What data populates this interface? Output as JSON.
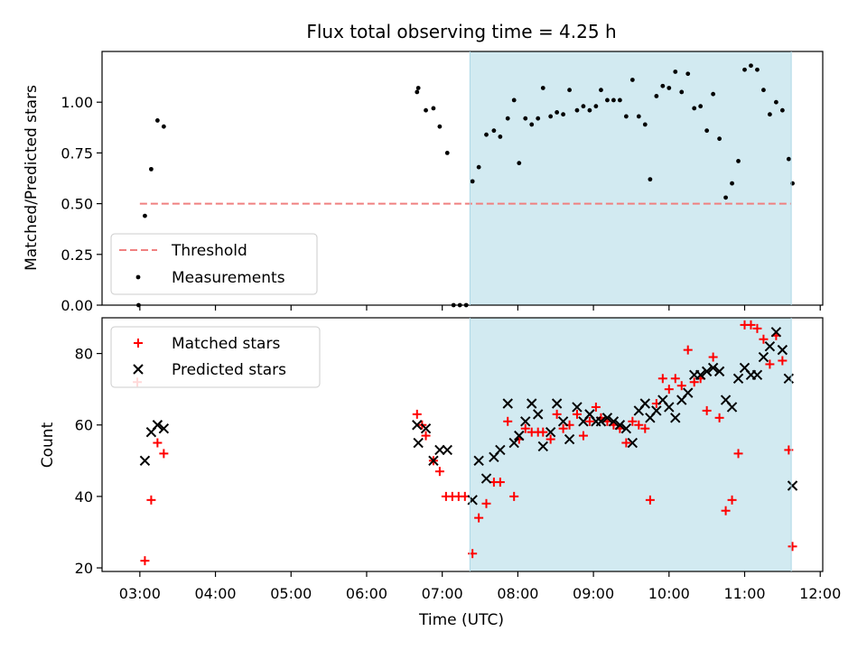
{
  "title": "Flux total observing time = 4.25 h",
  "chart_data": [
    {
      "type": "scatter",
      "ylabel": "Matched/Predicted stars",
      "xlabel": "",
      "xlim": [
        "02:30",
        "12:02"
      ],
      "ylim": [
        0,
        1.25
      ],
      "y_ticks": [
        {
          "value": 0.0,
          "label": "0.00"
        },
        {
          "value": 0.25,
          "label": "0.25"
        },
        {
          "value": 0.5,
          "label": "0.50"
        },
        {
          "value": 0.75,
          "label": "0.75"
        },
        {
          "value": 1.0,
          "label": "1.00"
        }
      ],
      "legend_position": "lower-left",
      "legend": [
        {
          "label": "Threshold",
          "kind": "dashed-line",
          "color": "#f08080"
        },
        {
          "label": "Measurements",
          "kind": "dot",
          "color": "#000000"
        }
      ],
      "observing_span": {
        "start": "07:22",
        "end": "11:37",
        "color": "#add8e6"
      },
      "threshold": {
        "value": 0.5,
        "x_range": [
          "03:00",
          "11:37"
        ],
        "color": "#f08080"
      },
      "series": [
        {
          "name": "Measurements",
          "marker": "dot",
          "color": "#000000",
          "points": [
            [
              "02:59",
              0.0
            ],
            [
              "03:04",
              0.44
            ],
            [
              "03:09",
              0.67
            ],
            [
              "03:14",
              0.91
            ],
            [
              "03:19",
              0.88
            ],
            [
              "06:40",
              1.05
            ],
            [
              "06:41",
              1.07
            ],
            [
              "06:47",
              0.96
            ],
            [
              "06:53",
              0.97
            ],
            [
              "06:58",
              0.88
            ],
            [
              "07:04",
              0.75
            ],
            [
              "07:09",
              0.0
            ],
            [
              "07:14",
              0.0
            ],
            [
              "07:19",
              0.0
            ],
            [
              "07:24",
              0.61
            ],
            [
              "07:29",
              0.68
            ],
            [
              "07:35",
              0.84
            ],
            [
              "07:41",
              0.86
            ],
            [
              "07:46",
              0.83
            ],
            [
              "07:52",
              0.92
            ],
            [
              "07:57",
              1.01
            ],
            [
              "08:01",
              0.7
            ],
            [
              "08:06",
              0.92
            ],
            [
              "08:11",
              0.89
            ],
            [
              "08:16",
              0.92
            ],
            [
              "08:20",
              1.07
            ],
            [
              "08:26",
              0.93
            ],
            [
              "08:31",
              0.95
            ],
            [
              "08:36",
              0.94
            ],
            [
              "08:41",
              1.06
            ],
            [
              "08:47",
              0.96
            ],
            [
              "08:52",
              0.98
            ],
            [
              "08:57",
              0.96
            ],
            [
              "09:02",
              0.98
            ],
            [
              "09:06",
              1.06
            ],
            [
              "09:11",
              1.01
            ],
            [
              "09:16",
              1.01
            ],
            [
              "09:21",
              1.01
            ],
            [
              "09:26",
              0.93
            ],
            [
              "09:31",
              1.11
            ],
            [
              "09:36",
              0.93
            ],
            [
              "09:41",
              0.89
            ],
            [
              "09:45",
              0.62
            ],
            [
              "09:50",
              1.03
            ],
            [
              "09:55",
              1.08
            ],
            [
              "10:00",
              1.07
            ],
            [
              "10:05",
              1.15
            ],
            [
              "10:10",
              1.05
            ],
            [
              "10:15",
              1.14
            ],
            [
              "10:20",
              0.97
            ],
            [
              "10:25",
              0.98
            ],
            [
              "10:30",
              0.86
            ],
            [
              "10:35",
              1.04
            ],
            [
              "10:40",
              0.82
            ],
            [
              "10:45",
              0.53
            ],
            [
              "10:50",
              0.6
            ],
            [
              "10:55",
              0.71
            ],
            [
              "11:00",
              1.16
            ],
            [
              "11:05",
              1.18
            ],
            [
              "11:10",
              1.16
            ],
            [
              "11:15",
              1.06
            ],
            [
              "11:20",
              0.94
            ],
            [
              "11:25",
              1.0
            ],
            [
              "11:30",
              0.96
            ],
            [
              "11:35",
              0.72
            ],
            [
              "11:38",
              0.6
            ]
          ]
        }
      ]
    },
    {
      "type": "scatter",
      "ylabel": "Count",
      "xlabel": "Time (UTC)",
      "xlim": [
        "02:30",
        "12:02"
      ],
      "ylim": [
        19,
        90
      ],
      "y_ticks": [
        {
          "value": 20,
          "label": "20"
        },
        {
          "value": 40,
          "label": "40"
        },
        {
          "value": 60,
          "label": "60"
        },
        {
          "value": 80,
          "label": "80"
        }
      ],
      "x_ticks": [
        "03:00",
        "04:00",
        "05:00",
        "06:00",
        "07:00",
        "08:00",
        "09:00",
        "10:00",
        "11:00",
        "12:00"
      ],
      "legend_position": "upper-left",
      "legend": [
        {
          "label": "Matched stars",
          "kind": "plus",
          "color": "#ff0000"
        },
        {
          "label": "Predicted stars",
          "kind": "cross",
          "color": "#000000"
        }
      ],
      "observing_span": {
        "start": "07:22",
        "end": "11:37",
        "color": "#add8e6"
      },
      "series": [
        {
          "name": "Matched stars",
          "marker": "plus",
          "color": "#ff0000",
          "points": [
            [
              "02:58",
              72
            ],
            [
              "03:04",
              22
            ],
            [
              "03:09",
              39
            ],
            [
              "03:14",
              55
            ],
            [
              "03:19",
              52
            ],
            [
              "06:40",
              63
            ],
            [
              "06:44",
              60
            ],
            [
              "06:47",
              57
            ],
            [
              "06:53",
              50
            ],
            [
              "06:58",
              47
            ],
            [
              "07:03",
              40
            ],
            [
              "07:08",
              40
            ],
            [
              "07:13",
              40
            ],
            [
              "07:18",
              40
            ],
            [
              "07:24",
              24
            ],
            [
              "07:29",
              34
            ],
            [
              "07:35",
              38
            ],
            [
              "07:41",
              44
            ],
            [
              "07:46",
              44
            ],
            [
              "07:52",
              61
            ],
            [
              "07:57",
              40
            ],
            [
              "08:01",
              56
            ],
            [
              "08:06",
              59
            ],
            [
              "08:11",
              58
            ],
            [
              "08:16",
              58
            ],
            [
              "08:20",
              58
            ],
            [
              "08:26",
              56
            ],
            [
              "08:31",
              63
            ],
            [
              "08:36",
              59
            ],
            [
              "08:41",
              60
            ],
            [
              "08:47",
              63
            ],
            [
              "08:52",
              57
            ],
            [
              "08:57",
              61
            ],
            [
              "09:02",
              65
            ],
            [
              "09:06",
              62
            ],
            [
              "09:11",
              61
            ],
            [
              "09:16",
              60
            ],
            [
              "09:21",
              59
            ],
            [
              "09:26",
              55
            ],
            [
              "09:31",
              61
            ],
            [
              "09:36",
              60
            ],
            [
              "09:41",
              59
            ],
            [
              "09:45",
              39
            ],
            [
              "09:50",
              66
            ],
            [
              "09:55",
              73
            ],
            [
              "10:00",
              70
            ],
            [
              "10:05",
              73
            ],
            [
              "10:10",
              71
            ],
            [
              "10:15",
              81
            ],
            [
              "10:20",
              72
            ],
            [
              "10:25",
              73
            ],
            [
              "10:30",
              64
            ],
            [
              "10:35",
              79
            ],
            [
              "10:40",
              62
            ],
            [
              "10:45",
              36
            ],
            [
              "10:50",
              39
            ],
            [
              "10:55",
              52
            ],
            [
              "11:00",
              88
            ],
            [
              "11:05",
              88
            ],
            [
              "11:10",
              87
            ],
            [
              "11:15",
              84
            ],
            [
              "11:20",
              77
            ],
            [
              "11:25",
              85
            ],
            [
              "11:30",
              78
            ],
            [
              "11:35",
              53
            ],
            [
              "11:38",
              26
            ]
          ]
        },
        {
          "name": "Predicted stars",
          "marker": "cross",
          "color": "#000000",
          "points": [
            [
              "03:04",
              50
            ],
            [
              "03:09",
              58
            ],
            [
              "03:14",
              60
            ],
            [
              "03:19",
              59
            ],
            [
              "06:40",
              60
            ],
            [
              "06:41",
              55
            ],
            [
              "06:47",
              59
            ],
            [
              "06:53",
              50
            ],
            [
              "06:58",
              53
            ],
            [
              "07:04",
              53
            ],
            [
              "07:24",
              39
            ],
            [
              "07:29",
              50
            ],
            [
              "07:35",
              45
            ],
            [
              "07:41",
              51
            ],
            [
              "07:46",
              53
            ],
            [
              "07:52",
              66
            ],
            [
              "07:57",
              55
            ],
            [
              "08:01",
              57
            ],
            [
              "08:06",
              61
            ],
            [
              "08:11",
              66
            ],
            [
              "08:16",
              63
            ],
            [
              "08:20",
              54
            ],
            [
              "08:26",
              58
            ],
            [
              "08:31",
              66
            ],
            [
              "08:36",
              61
            ],
            [
              "08:41",
              56
            ],
            [
              "08:47",
              65
            ],
            [
              "08:52",
              61
            ],
            [
              "08:57",
              63
            ],
            [
              "09:02",
              61
            ],
            [
              "09:06",
              61
            ],
            [
              "09:11",
              62
            ],
            [
              "09:16",
              61
            ],
            [
              "09:21",
              60
            ],
            [
              "09:26",
              59
            ],
            [
              "09:31",
              55
            ],
            [
              "09:36",
              64
            ],
            [
              "09:41",
              66
            ],
            [
              "09:45",
              62
            ],
            [
              "09:50",
              64
            ],
            [
              "09:55",
              67
            ],
            [
              "10:00",
              65
            ],
            [
              "10:05",
              62
            ],
            [
              "10:10",
              67
            ],
            [
              "10:15",
              69
            ],
            [
              "10:20",
              74
            ],
            [
              "10:25",
              74
            ],
            [
              "10:30",
              75
            ],
            [
              "10:35",
              76
            ],
            [
              "10:40",
              75
            ],
            [
              "10:45",
              67
            ],
            [
              "10:50",
              65
            ],
            [
              "10:55",
              73
            ],
            [
              "11:00",
              76
            ],
            [
              "11:05",
              74
            ],
            [
              "11:10",
              74
            ],
            [
              "11:15",
              79
            ],
            [
              "11:20",
              82
            ],
            [
              "11:25",
              86
            ],
            [
              "11:30",
              81
            ],
            [
              "11:35",
              73
            ],
            [
              "11:38",
              43
            ]
          ]
        }
      ]
    }
  ]
}
